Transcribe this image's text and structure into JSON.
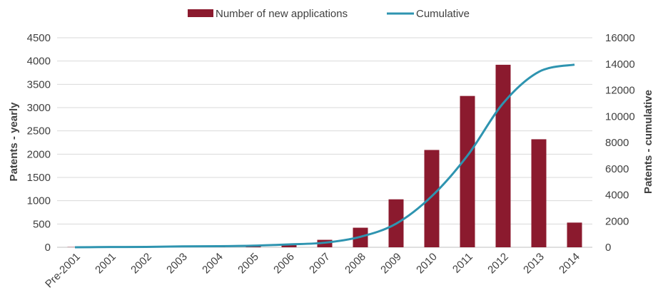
{
  "chart_data": {
    "type": "bar",
    "categories": [
      "Pre-2001",
      "2001",
      "2002",
      "2003",
      "2004",
      "2005",
      "2006",
      "2007",
      "2008",
      "2009",
      "2010",
      "2011",
      "2012",
      "2013",
      "2014"
    ],
    "series": [
      {
        "name": "Number of new applications",
        "type": "bar",
        "axis": "left",
        "color": "#8b1a2e",
        "values": [
          5,
          10,
          15,
          20,
          15,
          25,
          50,
          160,
          420,
          1030,
          2090,
          3250,
          3920,
          2320,
          530
        ]
      },
      {
        "name": "Cumulative",
        "type": "line",
        "axis": "right",
        "color": "#2e94b0",
        "values": [
          0,
          20,
          30,
          70,
          80,
          120,
          220,
          350,
          800,
          1800,
          3900,
          7000,
          11000,
          13400,
          13950
        ]
      }
    ],
    "ylabel": "Patents - yearly",
    "ylabel_right": "Patents - cumulative",
    "ylim": [
      0,
      4500
    ],
    "ylim_right": [
      0,
      16000
    ],
    "yticks": [
      "0",
      "500",
      "1000",
      "1500",
      "2000",
      "2500",
      "3000",
      "3500",
      "4000",
      "4500"
    ],
    "yticks_right": [
      "0",
      "2000",
      "4000",
      "6000",
      "8000",
      "10000",
      "12000",
      "14000",
      "16000"
    ],
    "grid": true,
    "legend_position": "top-center"
  }
}
